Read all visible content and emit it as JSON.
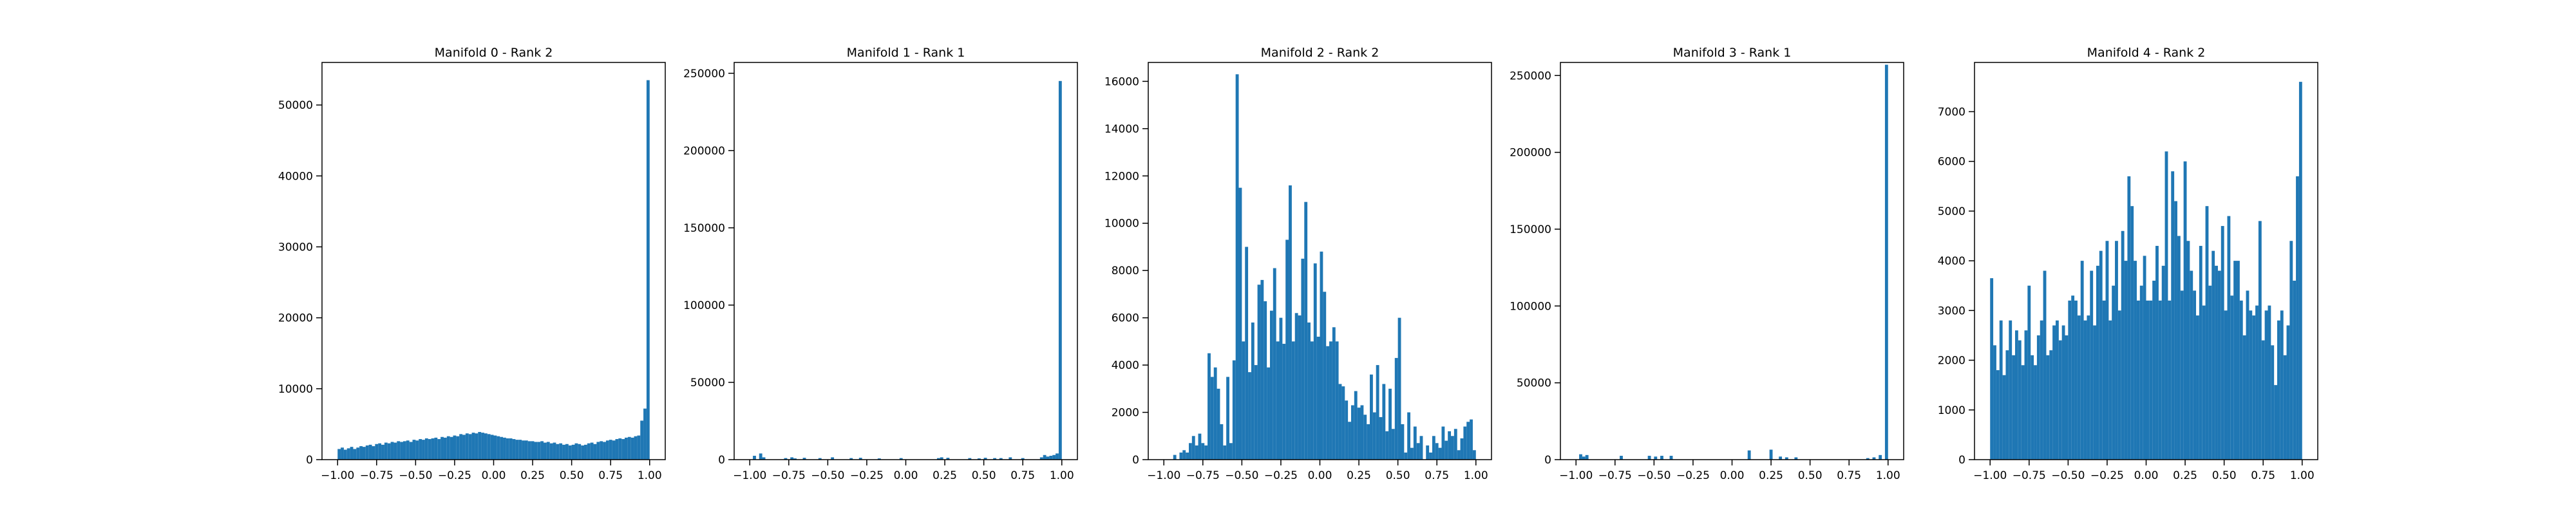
{
  "chart_data": [
    {
      "type": "histogram",
      "title": "Manifold 0 - Rank 2",
      "color": "#1f77b4",
      "bins": [
        -1,
        -0.98,
        -0.96,
        -0.94,
        -0.92,
        -0.9,
        -0.88,
        -0.86,
        -0.84,
        -0.82,
        -0.8,
        -0.78,
        -0.76,
        -0.74,
        -0.72,
        -0.7,
        -0.68,
        -0.66,
        -0.64,
        -0.62,
        -0.6,
        -0.58,
        -0.56,
        -0.54,
        -0.52,
        -0.5,
        -0.48,
        -0.46,
        -0.44,
        -0.42,
        -0.4,
        -0.38,
        -0.36,
        -0.34,
        -0.32,
        -0.3,
        -0.28,
        -0.26,
        -0.24,
        -0.22,
        -0.2,
        -0.18,
        -0.16,
        -0.14,
        -0.12,
        -0.1,
        -0.08,
        -0.06,
        -0.04,
        -0.02,
        0,
        0.02,
        0.04,
        0.06,
        0.08,
        0.1,
        0.12,
        0.14,
        0.16,
        0.18,
        0.2,
        0.22,
        0.24,
        0.26,
        0.28,
        0.3,
        0.32,
        0.34,
        0.36,
        0.38,
        0.4,
        0.42,
        0.44,
        0.46,
        0.48,
        0.5,
        0.52,
        0.54,
        0.56,
        0.58,
        0.6,
        0.62,
        0.64,
        0.66,
        0.68,
        0.7,
        0.72,
        0.74,
        0.76,
        0.78,
        0.8,
        0.82,
        0.84,
        0.86,
        0.88,
        0.9,
        0.92,
        0.94,
        0.96,
        0.98,
        1
      ],
      "values": [
        1500,
        1700,
        1400,
        1600,
        1800,
        1500,
        1700,
        1900,
        1800,
        2000,
        2100,
        1900,
        2200,
        2300,
        2100,
        2400,
        2300,
        2500,
        2400,
        2600,
        2500,
        2600,
        2700,
        2500,
        2800,
        2700,
        2900,
        2800,
        3000,
        2900,
        3000,
        3100,
        2900,
        3200,
        3100,
        3300,
        3200,
        3400,
        3300,
        3600,
        3500,
        3700,
        3600,
        3800,
        3700,
        3900,
        3800,
        3700,
        3600,
        3500,
        3400,
        3300,
        3200,
        3100,
        3000,
        3000,
        2900,
        2800,
        2800,
        2700,
        2700,
        2600,
        2600,
        2500,
        2500,
        2600,
        2400,
        2500,
        2300,
        2400,
        2200,
        2300,
        2100,
        2200,
        2000,
        2100,
        2300,
        2200,
        2000,
        2100,
        2300,
        2400,
        2200,
        2500,
        2600,
        2500,
        2700,
        2800,
        2700,
        2900,
        3000,
        2900,
        3100,
        3200,
        3100,
        3300,
        3400,
        5500,
        7200,
        53500
      ],
      "xlim": [
        -1.1,
        1.1
      ],
      "ylim": [
        0,
        56000
      ],
      "xticks": [
        {
          "value": -1,
          "label": "−1.00"
        },
        {
          "value": -0.75,
          "label": "−0.75"
        },
        {
          "value": -0.5,
          "label": "−0.50"
        },
        {
          "value": -0.25,
          "label": "−0.25"
        },
        {
          "value": 0,
          "label": "0.00"
        },
        {
          "value": 0.25,
          "label": "0.25"
        },
        {
          "value": 0.5,
          "label": "0.50"
        },
        {
          "value": 0.75,
          "label": "0.75"
        },
        {
          "value": 1,
          "label": "1.00"
        }
      ],
      "yticks": [
        0,
        10000,
        20000,
        30000,
        40000,
        50000
      ]
    },
    {
      "type": "histogram",
      "title": "Manifold 1 - Rank 1",
      "color": "#1f77b4",
      "bins": [
        -1,
        -0.98,
        -0.96,
        -0.94,
        -0.92,
        -0.9,
        -0.88,
        -0.86,
        -0.84,
        -0.82,
        -0.8,
        -0.78,
        -0.76,
        -0.74,
        -0.72,
        -0.7,
        -0.68,
        -0.66,
        -0.64,
        -0.62,
        -0.6,
        -0.58,
        -0.56,
        -0.54,
        -0.52,
        -0.5,
        -0.48,
        -0.46,
        -0.44,
        -0.42,
        -0.4,
        -0.38,
        -0.36,
        -0.34,
        -0.32,
        -0.3,
        -0.28,
        -0.26,
        -0.24,
        -0.22,
        -0.2,
        -0.18,
        -0.16,
        -0.14,
        -0.12,
        -0.1,
        -0.08,
        -0.06,
        -0.04,
        -0.02,
        0,
        0.02,
        0.04,
        0.06,
        0.08,
        0.1,
        0.12,
        0.14,
        0.16,
        0.18,
        0.2,
        0.22,
        0.24,
        0.26,
        0.28,
        0.3,
        0.32,
        0.34,
        0.36,
        0.38,
        0.4,
        0.42,
        0.44,
        0.46,
        0.48,
        0.5,
        0.52,
        0.54,
        0.56,
        0.58,
        0.6,
        0.62,
        0.64,
        0.66,
        0.68,
        0.7,
        0.72,
        0.74,
        0.76,
        0.78,
        0.8,
        0.82,
        0.84,
        0.86,
        0.88,
        0.9,
        0.92,
        0.94,
        0.96,
        0.98,
        1
      ],
      "values": [
        0,
        2500,
        0,
        4000,
        1500,
        0,
        0,
        0,
        0,
        0,
        0,
        1000,
        0,
        1500,
        800,
        0,
        0,
        1200,
        0,
        0,
        0,
        0,
        1000,
        0,
        0,
        0,
        1500,
        0,
        0,
        0,
        0,
        0,
        1000,
        0,
        0,
        1200,
        0,
        0,
        0,
        0,
        0,
        800,
        0,
        0,
        0,
        0,
        0,
        0,
        1000,
        0,
        0,
        0,
        0,
        0,
        0,
        0,
        0,
        0,
        0,
        0,
        1000,
        1500,
        0,
        1200,
        0,
        0,
        0,
        0,
        0,
        0,
        1000,
        0,
        0,
        800,
        0,
        1200,
        0,
        0,
        1000,
        0,
        1000,
        0,
        0,
        1500,
        0,
        0,
        0,
        1000,
        0,
        0,
        0,
        0,
        0,
        1500,
        3000,
        2000,
        2500,
        3000,
        4000,
        245000
      ],
      "xlim": [
        -1.1,
        1.1
      ],
      "ylim": [
        0,
        257000
      ],
      "xticks": [
        {
          "value": -1,
          "label": "−1.00"
        },
        {
          "value": -0.75,
          "label": "−0.75"
        },
        {
          "value": -0.5,
          "label": "−0.50"
        },
        {
          "value": -0.25,
          "label": "−0.25"
        },
        {
          "value": 0,
          "label": "0.00"
        },
        {
          "value": 0.25,
          "label": "0.25"
        },
        {
          "value": 0.5,
          "label": "0.50"
        },
        {
          "value": 0.75,
          "label": "0.75"
        },
        {
          "value": 1,
          "label": "1.00"
        }
      ],
      "yticks": [
        0,
        50000,
        100000,
        150000,
        200000,
        250000
      ]
    },
    {
      "type": "histogram",
      "title": "Manifold 2 - Rank 2",
      "color": "#1f77b4",
      "bins": [
        -1,
        -0.98,
        -0.96,
        -0.94,
        -0.92,
        -0.9,
        -0.88,
        -0.86,
        -0.84,
        -0.82,
        -0.8,
        -0.78,
        -0.76,
        -0.74,
        -0.72,
        -0.7,
        -0.68,
        -0.66,
        -0.64,
        -0.62,
        -0.6,
        -0.58,
        -0.56,
        -0.54,
        -0.52,
        -0.5,
        -0.48,
        -0.46,
        -0.44,
        -0.42,
        -0.4,
        -0.38,
        -0.36,
        -0.34,
        -0.32,
        -0.3,
        -0.28,
        -0.26,
        -0.24,
        -0.22,
        -0.2,
        -0.18,
        -0.16,
        -0.14,
        -0.12,
        -0.1,
        -0.08,
        -0.06,
        -0.04,
        -0.02,
        0,
        0.02,
        0.04,
        0.06,
        0.08,
        0.1,
        0.12,
        0.14,
        0.16,
        0.18,
        0.2,
        0.22,
        0.24,
        0.26,
        0.28,
        0.3,
        0.32,
        0.34,
        0.36,
        0.38,
        0.4,
        0.42,
        0.44,
        0.46,
        0.48,
        0.5,
        0.52,
        0.54,
        0.56,
        0.58,
        0.6,
        0.62,
        0.64,
        0.66,
        0.68,
        0.7,
        0.72,
        0.74,
        0.76,
        0.78,
        0.8,
        0.82,
        0.84,
        0.86,
        0.88,
        0.9,
        0.92,
        0.94,
        0.96,
        0.98,
        1
      ],
      "values": [
        0,
        0,
        0,
        200,
        0,
        300,
        400,
        300,
        700,
        1000,
        600,
        1100,
        700,
        600,
        4500,
        3500,
        3900,
        3000,
        1500,
        600,
        3500,
        700,
        4200,
        16300,
        11500,
        5000,
        9000,
        3700,
        5800,
        4000,
        7400,
        7600,
        6700,
        3900,
        6300,
        8100,
        5000,
        6000,
        4900,
        9300,
        11600,
        5000,
        6200,
        6100,
        8500,
        10900,
        5800,
        5000,
        8300,
        5200,
        8800,
        7100,
        4800,
        5000,
        5600,
        5000,
        3200,
        3100,
        2500,
        1600,
        2300,
        2900,
        2200,
        2300,
        1900,
        1500,
        3600,
        2000,
        4000,
        1800,
        3200,
        1200,
        3000,
        1300,
        4300,
        6000,
        1500,
        300,
        2000,
        500,
        1400,
        700,
        1000,
        0,
        600,
        300,
        1000,
        700,
        500,
        1400,
        800,
        1200,
        1000,
        1300,
        400,
        900,
        1400,
        1600,
        1700,
        400
      ],
      "xlim": [
        -1.1,
        1.1
      ],
      "ylim": [
        0,
        16800
      ],
      "xticks": [
        {
          "value": -1,
          "label": "−1.00"
        },
        {
          "value": -0.75,
          "label": "−0.75"
        },
        {
          "value": -0.5,
          "label": "−0.50"
        },
        {
          "value": -0.25,
          "label": "−0.25"
        },
        {
          "value": 0,
          "label": "0.00"
        },
        {
          "value": 0.25,
          "label": "0.25"
        },
        {
          "value": 0.5,
          "label": "0.50"
        },
        {
          "value": 0.75,
          "label": "0.75"
        },
        {
          "value": 1,
          "label": "1.00"
        }
      ],
      "yticks": [
        0,
        2000,
        4000,
        6000,
        8000,
        10000,
        12000,
        14000,
        16000
      ]
    },
    {
      "type": "histogram",
      "title": "Manifold 3 - Rank 1",
      "color": "#1f77b4",
      "bins": [
        -1,
        -0.98,
        -0.96,
        -0.94,
        -0.92,
        -0.9,
        -0.88,
        -0.86,
        -0.84,
        -0.82,
        -0.8,
        -0.78,
        -0.76,
        -0.74,
        -0.72,
        -0.7,
        -0.68,
        -0.66,
        -0.64,
        -0.62,
        -0.6,
        -0.58,
        -0.56,
        -0.54,
        -0.52,
        -0.5,
        -0.48,
        -0.46,
        -0.44,
        -0.42,
        -0.4,
        -0.38,
        -0.36,
        -0.34,
        -0.32,
        -0.3,
        -0.28,
        -0.26,
        -0.24,
        -0.22,
        -0.2,
        -0.18,
        -0.16,
        -0.14,
        -0.12,
        -0.1,
        -0.08,
        -0.06,
        -0.04,
        -0.02,
        0,
        0.02,
        0.04,
        0.06,
        0.08,
        0.1,
        0.12,
        0.14,
        0.16,
        0.18,
        0.2,
        0.22,
        0.24,
        0.26,
        0.28,
        0.3,
        0.32,
        0.34,
        0.36,
        0.38,
        0.4,
        0.42,
        0.44,
        0.46,
        0.48,
        0.5,
        0.52,
        0.54,
        0.56,
        0.58,
        0.6,
        0.62,
        0.64,
        0.66,
        0.68,
        0.7,
        0.72,
        0.74,
        0.76,
        0.78,
        0.8,
        0.82,
        0.84,
        0.86,
        0.88,
        0.9,
        0.92,
        0.94,
        0.96,
        0.98,
        1
      ],
      "values": [
        0,
        3500,
        2000,
        3000,
        0,
        0,
        0,
        0,
        0,
        0,
        0,
        0,
        0,
        0,
        2500,
        0,
        0,
        0,
        0,
        0,
        0,
        0,
        0,
        2500,
        0,
        2000,
        0,
        2500,
        0,
        0,
        2500,
        0,
        0,
        0,
        0,
        0,
        0,
        0,
        0,
        0,
        0,
        0,
        0,
        0,
        0,
        0,
        0,
        0,
        0,
        0,
        0,
        0,
        0,
        0,
        0,
        6000,
        0,
        0,
        0,
        0,
        0,
        0,
        6500,
        0,
        0,
        2000,
        0,
        1500,
        0,
        0,
        1500,
        0,
        0,
        0,
        0,
        0,
        0,
        0,
        0,
        0,
        0,
        0,
        0,
        0,
        0,
        0,
        0,
        0,
        0,
        0,
        0,
        0,
        0,
        1000,
        0,
        1500,
        0,
        3000,
        0,
        257000
      ],
      "xlim": [
        -1.1,
        1.1
      ],
      "ylim": [
        0,
        258500
      ],
      "xticks": [
        {
          "value": -1,
          "label": "−1.00"
        },
        {
          "value": -0.75,
          "label": "−0.75"
        },
        {
          "value": -0.5,
          "label": "−0.50"
        },
        {
          "value": -0.25,
          "label": "−0.25"
        },
        {
          "value": 0,
          "label": "0.00"
        },
        {
          "value": 0.25,
          "label": "0.25"
        },
        {
          "value": 0.5,
          "label": "0.50"
        },
        {
          "value": 0.75,
          "label": "0.75"
        },
        {
          "value": 1,
          "label": "1.00"
        }
      ],
      "yticks": [
        0,
        50000,
        100000,
        150000,
        200000,
        250000
      ]
    },
    {
      "type": "histogram",
      "title": "Manifold 4 - Rank 2",
      "color": "#1f77b4",
      "bins": [
        -1,
        -0.98,
        -0.96,
        -0.94,
        -0.92,
        -0.9,
        -0.88,
        -0.86,
        -0.84,
        -0.82,
        -0.8,
        -0.78,
        -0.76,
        -0.74,
        -0.72,
        -0.7,
        -0.68,
        -0.66,
        -0.64,
        -0.62,
        -0.6,
        -0.58,
        -0.56,
        -0.54,
        -0.52,
        -0.5,
        -0.48,
        -0.46,
        -0.44,
        -0.42,
        -0.4,
        -0.38,
        -0.36,
        -0.34,
        -0.32,
        -0.3,
        -0.28,
        -0.26,
        -0.24,
        -0.22,
        -0.2,
        -0.18,
        -0.16,
        -0.14,
        -0.12,
        -0.1,
        -0.08,
        -0.06,
        -0.04,
        -0.02,
        0,
        0.02,
        0.04,
        0.06,
        0.08,
        0.1,
        0.12,
        0.14,
        0.16,
        0.18,
        0.2,
        0.22,
        0.24,
        0.26,
        0.28,
        0.3,
        0.32,
        0.34,
        0.36,
        0.38,
        0.4,
        0.42,
        0.44,
        0.46,
        0.48,
        0.5,
        0.52,
        0.54,
        0.56,
        0.58,
        0.6,
        0.62,
        0.64,
        0.66,
        0.68,
        0.7,
        0.72,
        0.74,
        0.76,
        0.78,
        0.8,
        0.82,
        0.84,
        0.86,
        0.88,
        0.9,
        0.92,
        0.94,
        0.96,
        0.98,
        1
      ],
      "values": [
        3650,
        2300,
        1800,
        2800,
        1700,
        2200,
        2800,
        2100,
        2600,
        2400,
        1900,
        2600,
        3500,
        2100,
        1900,
        2500,
        2800,
        3800,
        2100,
        2200,
        2700,
        2800,
        2400,
        2700,
        2500,
        3200,
        3300,
        3200,
        2900,
        4000,
        2800,
        2900,
        3800,
        2700,
        3900,
        4200,
        3200,
        4400,
        2800,
        3500,
        4400,
        3000,
        4600,
        4000,
        5700,
        5100,
        4000,
        3200,
        3500,
        4100,
        3200,
        3200,
        3600,
        4300,
        3200,
        3900,
        6200,
        3200,
        5800,
        5200,
        4500,
        3400,
        6000,
        4400,
        3800,
        3400,
        2900,
        4300,
        3100,
        5100,
        3500,
        4200,
        3900,
        3800,
        4700,
        3000,
        4900,
        3300,
        4000,
        4000,
        3200,
        2500,
        3400,
        3000,
        2900,
        3100,
        4800,
        2400,
        3000,
        3100,
        2300,
        1500,
        2800,
        3000,
        2100,
        2700,
        4400,
        3600,
        5700,
        7600
      ],
      "xlim": [
        -1.1,
        1.1
      ],
      "ylim": [
        0,
        7990
      ],
      "xticks": [
        {
          "value": -1,
          "label": "−1.00"
        },
        {
          "value": -0.75,
          "label": "−0.75"
        },
        {
          "value": -0.5,
          "label": "−0.50"
        },
        {
          "value": -0.25,
          "label": "−0.25"
        },
        {
          "value": 0,
          "label": "0.00"
        },
        {
          "value": 0.25,
          "label": "0.25"
        },
        {
          "value": 0.5,
          "label": "0.50"
        },
        {
          "value": 0.75,
          "label": "0.75"
        },
        {
          "value": 1,
          "label": "1.00"
        }
      ],
      "yticks": [
        0,
        1000,
        2000,
        3000,
        4000,
        5000,
        6000,
        7000
      ]
    }
  ]
}
